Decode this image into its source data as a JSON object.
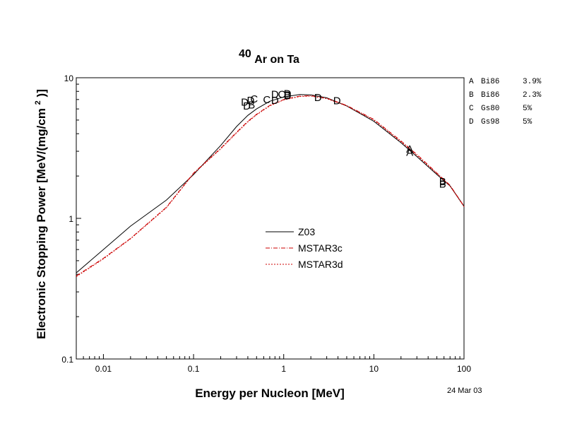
{
  "chart_data": {
    "type": "line",
    "title_super": "40",
    "title_main": "Ar on Ta",
    "xlabel": "Energy per Nucleon [MeV]",
    "ylabel": "Electronic Stopping Power [MeV/(mg/cm",
    "ylabel_sup": "2",
    "ylabel_end": ")]",
    "x_scale": "log",
    "y_scale": "log",
    "xlim": [
      0.005,
      100
    ],
    "ylim": [
      0.1,
      10
    ],
    "x_ticks": [
      {
        "v": 0.01,
        "label": "0.01"
      },
      {
        "v": 0.1,
        "label": "0.1"
      },
      {
        "v": 1,
        "label": "1"
      },
      {
        "v": 10,
        "label": "10"
      },
      {
        "v": 100,
        "label": "100"
      }
    ],
    "y_ticks": [
      {
        "v": 0.1,
        "label": "0.1"
      },
      {
        "v": 1,
        "label": "1"
      },
      {
        "v": 10,
        "label": "10"
      }
    ],
    "date": "24 Mar 03",
    "series": [
      {
        "name": "Z03",
        "color": "#000000",
        "dash": "",
        "points": [
          [
            0.005,
            0.41
          ],
          [
            0.01,
            0.6
          ],
          [
            0.02,
            0.88
          ],
          [
            0.05,
            1.35
          ],
          [
            0.1,
            2.05
          ],
          [
            0.2,
            3.3
          ],
          [
            0.3,
            4.5
          ],
          [
            0.4,
            5.4
          ],
          [
            0.5,
            6.0
          ],
          [
            0.7,
            6.8
          ],
          [
            1.0,
            7.3
          ],
          [
            1.5,
            7.6
          ],
          [
            2.0,
            7.55
          ],
          [
            3.0,
            7.2
          ],
          [
            5.0,
            6.3
          ],
          [
            10.0,
            4.9
          ],
          [
            20.0,
            3.45
          ],
          [
            30.0,
            2.75
          ],
          [
            50.0,
            2.05
          ],
          [
            70.0,
            1.7
          ],
          [
            100.0,
            1.22
          ]
        ]
      },
      {
        "name": "MSTAR3c",
        "color": "#cc0000",
        "dash": "6,2,1,2",
        "points": [
          [
            0.005,
            0.39
          ],
          [
            0.01,
            0.52
          ],
          [
            0.02,
            0.72
          ],
          [
            0.05,
            1.2
          ],
          [
            0.1,
            2.1
          ],
          [
            0.2,
            3.15
          ],
          [
            0.3,
            4.1
          ],
          [
            0.4,
            4.9
          ],
          [
            0.5,
            5.5
          ],
          [
            0.7,
            6.35
          ],
          [
            1.0,
            7.0
          ],
          [
            1.5,
            7.4
          ],
          [
            2.0,
            7.45
          ],
          [
            3.0,
            7.15
          ],
          [
            5.0,
            6.35
          ],
          [
            10.0,
            5.05
          ],
          [
            20.0,
            3.55
          ],
          [
            30.0,
            2.85
          ],
          [
            50.0,
            2.1
          ],
          [
            70.0,
            1.72
          ],
          [
            100.0,
            1.22
          ]
        ]
      },
      {
        "name": "MSTAR3d",
        "color": "#cc0000",
        "dash": "2,2",
        "points": [
          [
            0.005,
            0.385
          ],
          [
            0.01,
            0.515
          ],
          [
            0.02,
            0.715
          ],
          [
            0.05,
            1.19
          ],
          [
            0.1,
            2.08
          ],
          [
            0.2,
            3.12
          ],
          [
            0.3,
            4.05
          ],
          [
            0.4,
            4.85
          ],
          [
            0.5,
            5.45
          ],
          [
            0.7,
            6.3
          ],
          [
            1.0,
            6.95
          ],
          [
            1.5,
            7.35
          ],
          [
            2.0,
            7.4
          ],
          [
            3.0,
            7.1
          ],
          [
            5.0,
            6.3
          ],
          [
            10.0,
            5.0
          ],
          [
            20.0,
            3.5
          ],
          [
            30.0,
            2.8
          ],
          [
            50.0,
            2.08
          ],
          [
            70.0,
            1.7
          ],
          [
            100.0,
            1.21
          ]
        ]
      }
    ],
    "markers": [
      {
        "letter": "A",
        "x": 25,
        "y": 3.1
      },
      {
        "letter": "A",
        "x": 25,
        "y": 2.95
      },
      {
        "letter": "B",
        "x": 58,
        "y": 1.82
      },
      {
        "letter": "B",
        "x": 58,
        "y": 1.75
      },
      {
        "letter": "D",
        "x": 0.37,
        "y": 6.7
      },
      {
        "letter": "D",
        "x": 0.39,
        "y": 6.3
      },
      {
        "letter": "B",
        "x": 0.44,
        "y": 6.4
      },
      {
        "letter": "D",
        "x": 0.43,
        "y": 6.9
      },
      {
        "letter": "C",
        "x": 0.47,
        "y": 7.05
      },
      {
        "letter": "C",
        "x": 0.65,
        "y": 7.0
      },
      {
        "letter": "D",
        "x": 0.8,
        "y": 7.6
      },
      {
        "letter": "C",
        "x": 0.95,
        "y": 7.6
      },
      {
        "letter": "D",
        "x": 1.1,
        "y": 7.7
      },
      {
        "letter": "D",
        "x": 1.1,
        "y": 7.45
      },
      {
        "letter": "B",
        "x": 1.1,
        "y": 7.55
      },
      {
        "letter": "D",
        "x": 0.8,
        "y": 6.9
      },
      {
        "letter": "D",
        "x": 2.4,
        "y": 7.25
      },
      {
        "letter": "D",
        "x": 3.9,
        "y": 6.85
      }
    ],
    "references": [
      {
        "id": "A",
        "name": "Bi86",
        "pct": "3.9%"
      },
      {
        "id": "B",
        "name": "Bi86",
        "pct": "2.3%"
      },
      {
        "id": "C",
        "name": "Gs80",
        "pct": "5%"
      },
      {
        "id": "D",
        "name": "Gs98",
        "pct": "5%"
      }
    ]
  }
}
